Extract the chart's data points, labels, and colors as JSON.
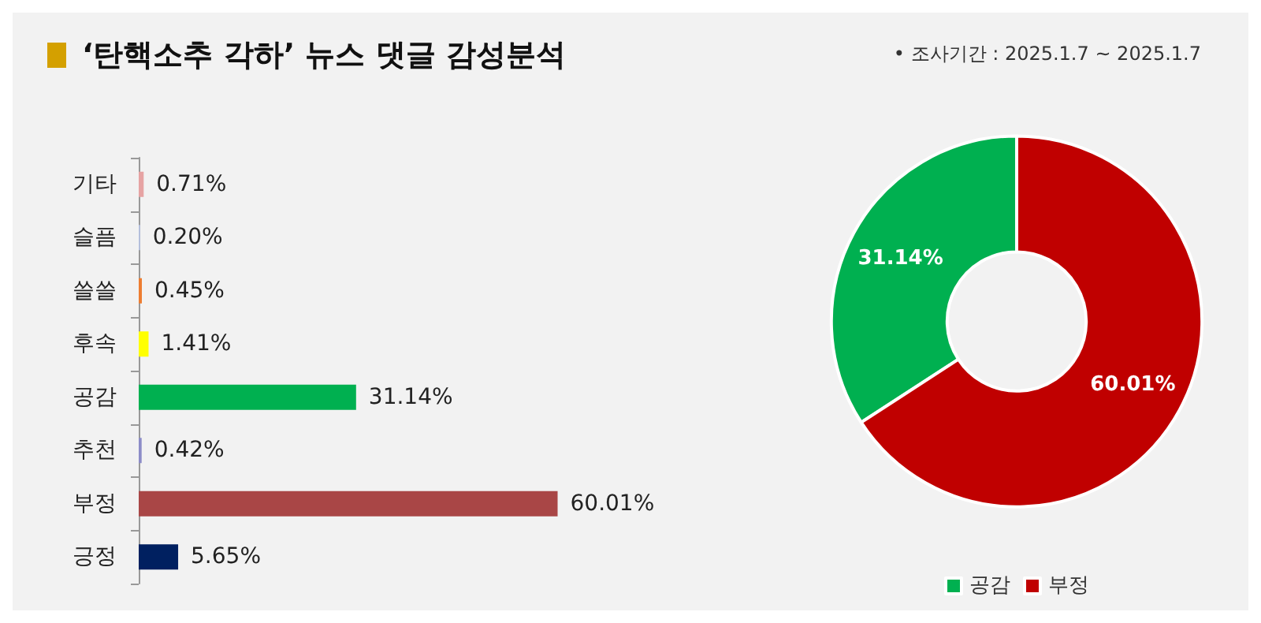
{
  "chart_data": [
    {
      "type": "bar",
      "orientation": "horizontal",
      "title": "‘탄핵소추 각하’ 뉴스 댓글 감성분석",
      "categories": [
        "기타",
        "슬픔",
        "쓸쓸",
        "후속",
        "공감",
        "추천",
        "부정",
        "긍정"
      ],
      "values": [
        0.71,
        0.2,
        0.45,
        1.41,
        31.14,
        0.42,
        60.01,
        5.65
      ],
      "colors": [
        "#e6a3a3",
        "#b8c4e4",
        "#ed7d31",
        "#ffff00",
        "#00b050",
        "#8c8cc8",
        "#a94646",
        "#002060"
      ],
      "value_labels": [
        "0.71%",
        "0.20%",
        "0.45%",
        "1.41%",
        "31.14%",
        "0.42%",
        "60.01%",
        "5.65%"
      ],
      "grid": false,
      "legend": false
    },
    {
      "type": "donut",
      "categories": [
        "공감",
        "부정"
      ],
      "values": [
        31.14,
        60.01
      ],
      "colors": [
        "#00b050",
        "#c00000"
      ],
      "value_labels": [
        "31.14%",
        "60.01%"
      ],
      "legend": "bottom",
      "annotations": [
        "• 조사기간 : 2025.1.7 ~ 2025.1.7"
      ]
    }
  ]
}
